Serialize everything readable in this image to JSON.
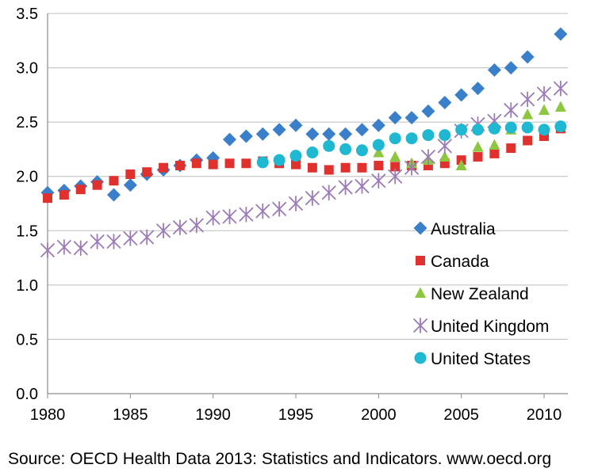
{
  "chart_data": {
    "type": "scatter",
    "title": "",
    "xlabel": "",
    "ylabel": "",
    "xlim": [
      1980,
      2012
    ],
    "ylim": [
      0,
      3.5
    ],
    "x_ticks": [
      1980,
      1985,
      1990,
      1995,
      2000,
      2005,
      2010
    ],
    "y_ticks": [
      "0.0",
      "0.5",
      "1.0",
      "1.5",
      "2.0",
      "2.5",
      "3.0",
      "3.5"
    ],
    "grid": "horizontal",
    "legend_position": "lower-right",
    "series": [
      {
        "name": "Australia",
        "marker": "diamond",
        "color": "#3a7fc9",
        "x": [
          1980,
          1981,
          1982,
          1983,
          1984,
          1985,
          1986,
          1987,
          1988,
          1989,
          1990,
          1991,
          1992,
          1993,
          1994,
          1995,
          1996,
          1997,
          1998,
          1999,
          2000,
          2001,
          2002,
          2003,
          2004,
          2005,
          2006,
          2007,
          2008,
          2009,
          2011
        ],
        "y": [
          1.85,
          1.87,
          1.91,
          1.95,
          1.83,
          1.92,
          2.02,
          2.06,
          2.1,
          2.15,
          2.17,
          2.34,
          2.37,
          2.39,
          2.43,
          2.47,
          2.39,
          2.39,
          2.39,
          2.43,
          2.47,
          2.54,
          2.54,
          2.6,
          2.68,
          2.75,
          2.81,
          2.98,
          3.0,
          3.1,
          3.31
        ]
      },
      {
        "name": "Canada",
        "marker": "square",
        "color": "#e0312e",
        "x": [
          1980,
          1981,
          1982,
          1983,
          1984,
          1985,
          1986,
          1987,
          1988,
          1989,
          1990,
          1991,
          1992,
          1993,
          1994,
          1995,
          1996,
          1997,
          1998,
          1999,
          2000,
          2001,
          2002,
          2003,
          2004,
          2005,
          2006,
          2007,
          2008,
          2009,
          2010,
          2011
        ],
        "y": [
          1.8,
          1.83,
          1.88,
          1.92,
          1.96,
          2.02,
          2.04,
          2.08,
          2.1,
          2.12,
          2.11,
          2.12,
          2.12,
          2.14,
          2.12,
          2.11,
          2.08,
          2.06,
          2.08,
          2.08,
          2.1,
          2.09,
          2.1,
          2.1,
          2.12,
          2.15,
          2.18,
          2.21,
          2.26,
          2.33,
          2.37,
          2.44
        ]
      },
      {
        "name": "New Zealand",
        "marker": "triangle",
        "color": "#8dc63f",
        "x": [
          2000,
          2001,
          2002,
          2003,
          2004,
          2005,
          2006,
          2007,
          2008,
          2009,
          2010,
          2011
        ],
        "y": [
          2.22,
          2.18,
          2.12,
          2.15,
          2.18,
          2.1,
          2.27,
          2.29,
          2.43,
          2.57,
          2.61,
          2.64
        ]
      },
      {
        "name": "United Kingdom",
        "marker": "star",
        "color": "#9b7bb8",
        "x": [
          1980,
          1981,
          1982,
          1983,
          1984,
          1985,
          1986,
          1987,
          1988,
          1989,
          1990,
          1991,
          1992,
          1993,
          1994,
          1995,
          1996,
          1997,
          1998,
          1999,
          2000,
          2001,
          2002,
          2003,
          2004,
          2005,
          2006,
          2007,
          2008,
          2009,
          2010,
          2011
        ],
        "y": [
          1.32,
          1.35,
          1.34,
          1.4,
          1.4,
          1.43,
          1.44,
          1.5,
          1.53,
          1.55,
          1.62,
          1.63,
          1.65,
          1.68,
          1.7,
          1.75,
          1.8,
          1.85,
          1.9,
          1.91,
          1.96,
          2.0,
          2.08,
          2.18,
          2.28,
          2.42,
          2.48,
          2.51,
          2.61,
          2.71,
          2.76,
          2.81
        ]
      },
      {
        "name": "United States",
        "marker": "circle",
        "color": "#1fb8d0",
        "x": [
          1993,
          1994,
          1995,
          1996,
          1997,
          1998,
          1999,
          2000,
          2001,
          2002,
          2003,
          2004,
          2005,
          2006,
          2007,
          2008,
          2009,
          2010,
          2011
        ],
        "y": [
          2.13,
          2.15,
          2.19,
          2.22,
          2.28,
          2.25,
          2.24,
          2.29,
          2.35,
          2.35,
          2.38,
          2.38,
          2.43,
          2.43,
          2.44,
          2.45,
          2.45,
          2.43,
          2.46
        ]
      }
    ]
  },
  "source_note": "Source: OECD Health Data 2013: Statistics and Indicators. www.oecd.org"
}
